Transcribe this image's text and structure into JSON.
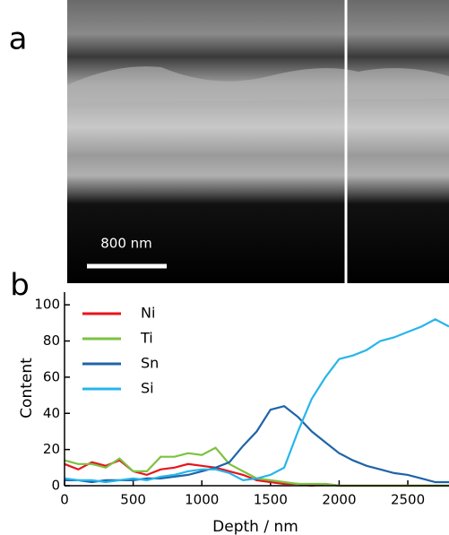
{
  "panel_labels": [
    "a",
    "b"
  ],
  "scale_bar": "800 nm",
  "chart_data": {
    "type": "line",
    "x_label": "Depth / nm",
    "y_label": "Content",
    "x": [
      0,
      100,
      200,
      300,
      400,
      500,
      600,
      700,
      800,
      900,
      1000,
      1100,
      1200,
      1300,
      1400,
      1500,
      1600,
      1700,
      1800,
      1900,
      2000,
      2100,
      2200,
      2300,
      2400,
      2500,
      2600,
      2700,
      2800
    ],
    "series": [
      {
        "name": "Ni",
        "color": "#e8141c",
        "values": [
          12,
          9,
          13,
          11,
          14,
          8,
          6,
          9,
          10,
          12,
          11,
          10,
          8,
          6,
          3,
          2,
          1,
          1,
          0,
          1,
          0,
          0,
          0,
          0,
          0,
          0,
          0,
          0,
          0
        ]
      },
      {
        "name": "Ti",
        "color": "#7cc242",
        "values": [
          14,
          12,
          12,
          10,
          15,
          8,
          8,
          16,
          16,
          18,
          17,
          21,
          12,
          8,
          4,
          3,
          2,
          1,
          1,
          1,
          0,
          0,
          0,
          0,
          0,
          0,
          0,
          0,
          0
        ]
      },
      {
        "name": "Sn",
        "color": "#1f64a8",
        "values": [
          3,
          3,
          2,
          3,
          3,
          3,
          4,
          4,
          5,
          6,
          8,
          10,
          13,
          22,
          30,
          42,
          44,
          38,
          30,
          24,
          18,
          14,
          11,
          9,
          7,
          6,
          4,
          2,
          2
        ]
      },
      {
        "name": "Si",
        "color": "#27b5ea",
        "values": [
          4,
          3,
          3,
          2,
          3,
          4,
          3,
          5,
          6,
          8,
          9,
          9,
          7,
          3,
          4,
          6,
          10,
          30,
          48,
          60,
          70,
          72,
          75,
          80,
          82,
          85,
          88,
          92,
          88
        ]
      }
    ],
    "xlim": [
      0,
      2800
    ],
    "ylim": [
      0,
      107
    ],
    "xticks": [
      0,
      500,
      1000,
      1500,
      2000,
      2500
    ],
    "yticks": [
      0,
      20,
      40,
      60,
      80,
      100
    ],
    "legend": "upper left"
  }
}
